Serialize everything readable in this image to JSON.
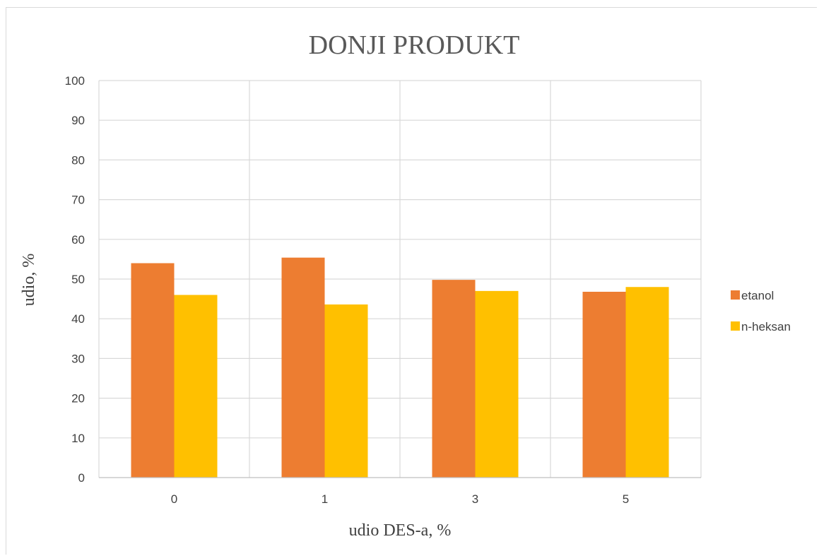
{
  "chart_data": {
    "type": "bar",
    "title": "DONJI PRODUKT",
    "xlabel": "udio DES-a, %",
    "ylabel": "udio, %",
    "categories": [
      "0",
      "1",
      "3",
      "5"
    ],
    "ylim": [
      0,
      100
    ],
    "yticks": [
      0,
      10,
      20,
      30,
      40,
      50,
      60,
      70,
      80,
      90,
      100
    ],
    "grid": true,
    "legend_position": "right",
    "series": [
      {
        "name": "etanol",
        "color": "#ED7D31",
        "values": [
          54,
          55.4,
          49.8,
          46.8
        ]
      },
      {
        "name": "n-heksan",
        "color": "#FFC000",
        "values": [
          46,
          43.6,
          47,
          48
        ]
      }
    ]
  }
}
